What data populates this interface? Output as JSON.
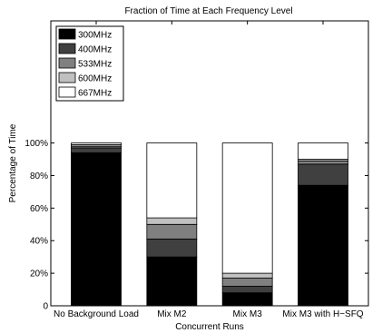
{
  "chart_data": {
    "type": "bar",
    "stacked": true,
    "title": "Fraction of Time at Each Frequency Level",
    "xlabel": "Concurrent Runs",
    "ylabel": "Percentage of Time",
    "ylim": [
      0,
      175
    ],
    "yticks": [
      0,
      20,
      40,
      60,
      80,
      100
    ],
    "ytick_labels": [
      "0",
      "20%",
      "40%",
      "60%",
      "80%",
      "100%"
    ],
    "categories": [
      "No Background Load",
      "Mix M2",
      "Mix M3",
      "Mix M3 with H−SFQ"
    ],
    "series": [
      {
        "name": "300MHz",
        "color": "#000000",
        "values": [
          94,
          30,
          8,
          74
        ]
      },
      {
        "name": "400MHz",
        "color": "#404040",
        "values": [
          3,
          11,
          4,
          13
        ]
      },
      {
        "name": "533MHz",
        "color": "#808080",
        "values": [
          1,
          9,
          5,
          2
        ]
      },
      {
        "name": "600MHz",
        "color": "#c0c0c0",
        "values": [
          1,
          4,
          3,
          1
        ]
      },
      {
        "name": "667MHz",
        "color": "#ffffff",
        "values": [
          1,
          46,
          80,
          10
        ]
      }
    ],
    "legend_position": "top-left",
    "grid": false
  }
}
